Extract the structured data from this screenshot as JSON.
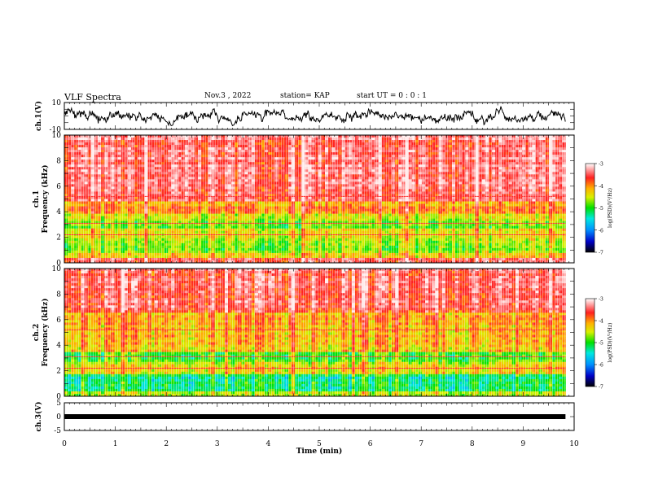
{
  "header": {
    "title": "VLF Spectra",
    "date": "Nov.3  , 2022",
    "station": "station= KAP",
    "start": "start  UT =   0 : 0  : 1"
  },
  "chart_data": [
    {
      "type": "line",
      "panel": "ch1-waveform",
      "ylabel": "ch.1(V)",
      "ylim": [
        -10,
        10
      ],
      "yticks": [
        "10",
        "-10"
      ],
      "xlim": [
        0,
        10
      ],
      "color": "#000000",
      "description_level": "noisy signal between about -6 and 6 V"
    },
    {
      "type": "heatmap",
      "panel": "ch1-spectrogram",
      "ylabel": "ch.1",
      "ylabel2": "Frequency  (kHz)",
      "ylim": [
        0,
        10
      ],
      "yticks": [
        "0",
        "2",
        "4",
        "6",
        "8",
        "10"
      ],
      "xlim": [
        0,
        9.83
      ],
      "colorbar": {
        "label": "log(PSD)(V²/Hz)",
        "ticks": [
          "-3",
          "-4",
          "-5",
          "-6",
          "-7"
        ],
        "range": [
          -7,
          -3
        ]
      },
      "bands_log_psd": [
        {
          "f_from": 0,
          "f_to": 0.3,
          "level": -3.6
        },
        {
          "f_from": 0.3,
          "f_to": 0.8,
          "level": -4.2
        },
        {
          "f_from": 0.8,
          "f_to": 2.0,
          "level": -4.7
        },
        {
          "f_from": 2.0,
          "f_to": 2.6,
          "level": -4.3
        },
        {
          "f_from": 2.6,
          "f_to": 3.3,
          "level": -4.8
        },
        {
          "f_from": 3.3,
          "f_to": 3.8,
          "level": -4.6
        },
        {
          "f_from": 3.8,
          "f_to": 4.8,
          "level": -4.0
        },
        {
          "f_from": 4.8,
          "f_to": 10,
          "level": -3.4
        }
      ]
    },
    {
      "type": "heatmap",
      "panel": "ch2-spectrogram",
      "ylabel": "ch.2",
      "ylabel2": "Frequency  (kHz)",
      "ylim": [
        0,
        10
      ],
      "yticks": [
        "0",
        "2",
        "4",
        "6",
        "8",
        "10"
      ],
      "xlim": [
        0,
        9.83
      ],
      "colorbar": {
        "label": "log(PSD)(V²/Hz)",
        "ticks": [
          "-3",
          "-4",
          "-5",
          "-6",
          "-7"
        ],
        "range": [
          -7,
          -3
        ]
      },
      "bands_log_psd": [
        {
          "f_from": 0,
          "f_to": 0.4,
          "level": -4.6
        },
        {
          "f_from": 0.4,
          "f_to": 1.8,
          "level": -5.3
        },
        {
          "f_from": 1.8,
          "f_to": 2.6,
          "level": -4.4
        },
        {
          "f_from": 2.6,
          "f_to": 3.4,
          "level": -4.9
        },
        {
          "f_from": 3.4,
          "f_to": 4.4,
          "level": -4.2
        },
        {
          "f_from": 4.4,
          "f_to": 6.5,
          "level": -4.1
        },
        {
          "f_from": 6.5,
          "f_to": 10,
          "level": -3.5
        }
      ]
    },
    {
      "type": "line",
      "panel": "ch3-waveform",
      "ylabel": "ch.3(V)",
      "ylim": [
        -5,
        5
      ],
      "yticks": [
        "5",
        "0",
        "-5"
      ],
      "xlim": [
        0,
        10
      ],
      "level": 0,
      "xlabel": "Time  (min)",
      "xticks": [
        "0",
        "1",
        "2",
        "3",
        "4",
        "5",
        "6",
        "7",
        "8",
        "9",
        "10"
      ]
    }
  ]
}
